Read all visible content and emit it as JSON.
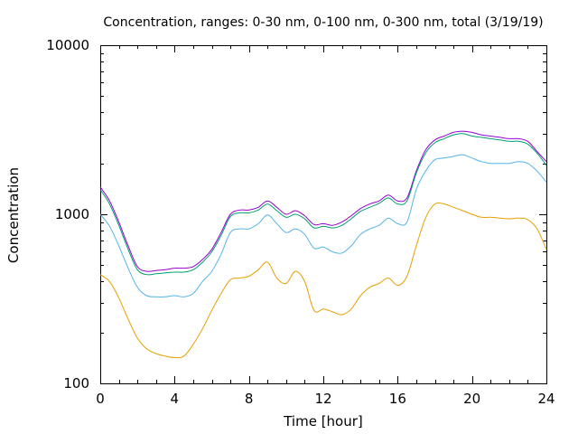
{
  "chart_data": {
    "type": "line",
    "title": "Concentration, ranges: 0-30 nm, 0-100 nm, 0-300 nm, total (3/19/19)",
    "xlabel": "Time [hour]",
    "ylabel": "Concentration",
    "xlim": [
      0,
      24
    ],
    "ylim": [
      100,
      10000
    ],
    "yscale": "log",
    "grid": false,
    "legend": "none",
    "x_ticks": [
      "0",
      "4",
      "8",
      "12",
      "16",
      "20",
      "24"
    ],
    "y_ticks": [
      "100",
      "1000",
      "10000"
    ],
    "x": [
      0,
      0.5,
      1,
      1.5,
      2,
      2.5,
      3,
      3.5,
      4,
      4.5,
      5,
      5.5,
      6,
      6.5,
      7,
      7.5,
      8,
      8.5,
      9,
      9.5,
      10,
      10.5,
      11,
      11.5,
      12,
      12.5,
      13,
      13.5,
      14,
      14.5,
      15,
      15.5,
      16,
      16.5,
      17,
      17.5,
      18,
      18.5,
      19,
      19.5,
      20,
      20.5,
      21,
      21.5,
      22,
      22.5,
      23,
      23.5,
      24
    ],
    "series": [
      {
        "color": "#9400d3",
        "values": [
          1450,
          1200,
          900,
          650,
          490,
          460,
          465,
          470,
          480,
          480,
          490,
          540,
          620,
          780,
          1000,
          1060,
          1060,
          1100,
          1200,
          1100,
          1000,
          1050,
          980,
          870,
          880,
          860,
          900,
          980,
          1080,
          1150,
          1200,
          1300,
          1200,
          1250,
          1800,
          2400,
          2750,
          2900,
          3050,
          3100,
          3050,
          2950,
          2900,
          2850,
          2800,
          2800,
          2700,
          2350,
          2050
        ]
      },
      {
        "color": "#009e73",
        "values": [
          1400,
          1150,
          860,
          620,
          470,
          440,
          445,
          450,
          455,
          455,
          470,
          520,
          600,
          750,
          970,
          1020,
          1020,
          1060,
          1150,
          1050,
          960,
          1000,
          940,
          830,
          850,
          830,
          860,
          940,
          1040,
          1100,
          1160,
          1250,
          1150,
          1200,
          1750,
          2300,
          2650,
          2800,
          2950,
          3000,
          2900,
          2850,
          2800,
          2750,
          2700,
          2700,
          2600,
          2300,
          1950
        ]
      },
      {
        "color": "#56b4e9",
        "values": [
          1000,
          850,
          650,
          480,
          370,
          330,
          325,
          325,
          330,
          325,
          340,
          400,
          460,
          580,
          780,
          820,
          820,
          880,
          990,
          880,
          780,
          820,
          760,
          630,
          640,
          600,
          590,
          650,
          760,
          820,
          860,
          950,
          880,
          900,
          1400,
          1800,
          2100,
          2150,
          2200,
          2250,
          2150,
          2050,
          2000,
          2000,
          2000,
          2050,
          2000,
          1800,
          1550
        ]
      },
      {
        "color": "#e69f00",
        "values": [
          440,
          400,
          320,
          240,
          185,
          160,
          150,
          145,
          142,
          145,
          170,
          210,
          270,
          340,
          410,
          420,
          430,
          470,
          520,
          420,
          390,
          460,
          400,
          270,
          275,
          265,
          255,
          275,
          330,
          370,
          390,
          420,
          380,
          430,
          650,
          950,
          1150,
          1150,
          1100,
          1050,
          1000,
          960,
          960,
          950,
          940,
          950,
          930,
          820,
          620
        ]
      }
    ]
  }
}
